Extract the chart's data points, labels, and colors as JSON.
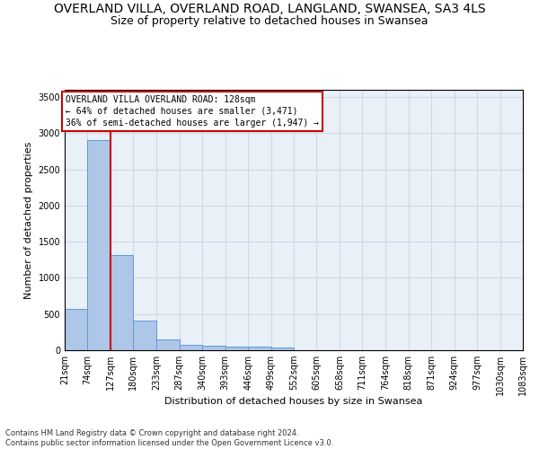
{
  "title": "OVERLAND VILLA, OVERLAND ROAD, LANGLAND, SWANSEA, SA3 4LS",
  "subtitle": "Size of property relative to detached houses in Swansea",
  "xlabel": "Distribution of detached houses by size in Swansea",
  "ylabel": "Number of detached properties",
  "footnote": "Contains HM Land Registry data © Crown copyright and database right 2024.\nContains public sector information licensed under the Open Government Licence v3.0.",
  "bar_edges": [
    21,
    74,
    127,
    180,
    233,
    287,
    340,
    393,
    446,
    499,
    552,
    605,
    658,
    711,
    764,
    818,
    871,
    924,
    977,
    1030,
    1083
  ],
  "bar_heights": [
    570,
    2910,
    1310,
    410,
    155,
    80,
    60,
    55,
    45,
    40,
    0,
    0,
    0,
    0,
    0,
    0,
    0,
    0,
    0,
    0
  ],
  "bar_color": "#aec6e8",
  "bar_edge_color": "#5b9bd5",
  "red_line_x": 127,
  "red_line_color": "#cc0000",
  "annotation_text": "OVERLAND VILLA OVERLAND ROAD: 128sqm\n← 64% of detached houses are smaller (3,471)\n36% of semi-detached houses are larger (1,947) →",
  "annotation_box_color": "#ffffff",
  "annotation_box_edge": "#cc0000",
  "ylim": [
    0,
    3600
  ],
  "yticks": [
    0,
    500,
    1000,
    1500,
    2000,
    2500,
    3000,
    3500
  ],
  "grid_color": "#d0d8e8",
  "bg_color": "#eaf0f8",
  "title_fontsize": 10,
  "subtitle_fontsize": 9,
  "label_fontsize": 8,
  "tick_fontsize": 7,
  "tick_labels": [
    "21sqm",
    "74sqm",
    "127sqm",
    "180sqm",
    "233sqm",
    "287sqm",
    "340sqm",
    "393sqm",
    "446sqm",
    "499sqm",
    "552sqm",
    "605sqm",
    "658sqm",
    "711sqm",
    "764sqm",
    "818sqm",
    "871sqm",
    "924sqm",
    "977sqm",
    "1030sqm",
    "1083sqm"
  ]
}
